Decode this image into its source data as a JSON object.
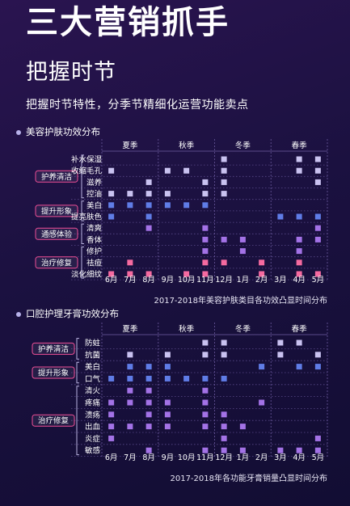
{
  "header": {
    "title": "三大营销抓手",
    "subtitle": "把握时节",
    "tagline": "把握时节特性，分季节精细化运营功能卖点"
  },
  "colors": {
    "lavender": "#c9c2f0",
    "blue": "#5f7ce6",
    "purple": "#a372e6",
    "pink": "#f56aa0",
    "category_label_bg": "#f04f96",
    "grid": "#5a4a8a"
  },
  "chart_data": [
    {
      "type": "table",
      "title": "美容护肤功效分布",
      "caption": "2017-2018年美容护肤类目各功效凸显时间分布",
      "seasons": [
        "夏季",
        "秋季",
        "冬季",
        "春季"
      ],
      "months": [
        "6月",
        "7月",
        "8月",
        "9月",
        "10月",
        "11月",
        "12月",
        "1月",
        "2月",
        "3月",
        "4月",
        "5月"
      ],
      "groups": [
        {
          "name": "护养清洁",
          "rows": [
            0,
            3
          ]
        },
        {
          "name": "提升形象",
          "rows": [
            4,
            5
          ]
        },
        {
          "name": "通感体验",
          "rows": [
            6,
            7
          ]
        },
        {
          "name": "治疗修复",
          "rows": [
            8,
            10
          ]
        }
      ],
      "rows": [
        {
          "name": "补水保湿",
          "color": "lavender",
          "months": [
            6,
            10,
            11
          ]
        },
        {
          "name": "收缩毛孔",
          "color": "lavender",
          "months": [
            0,
            3,
            4,
            6,
            10,
            11
          ]
        },
        {
          "name": "滋养",
          "color": "lavender",
          "months": [
            2,
            5,
            6,
            11
          ]
        },
        {
          "name": "控油",
          "color": "lavender",
          "months": [
            0,
            1,
            2,
            3,
            5,
            6
          ]
        },
        {
          "name": "美白",
          "color": "blue",
          "months": [
            0,
            1,
            2,
            3,
            4,
            5
          ]
        },
        {
          "name": "提亮肤色",
          "color": "blue",
          "months": [
            0,
            2,
            9,
            10,
            11
          ]
        },
        {
          "name": "清爽",
          "color": "purple",
          "months": [
            2,
            5,
            11
          ]
        },
        {
          "name": "香体",
          "color": "purple",
          "months": [
            5,
            6,
            7,
            10,
            11
          ]
        },
        {
          "name": "修护",
          "color": "purple",
          "months": [
            5,
            7,
            10
          ]
        },
        {
          "name": "祛痘",
          "color": "pink",
          "months": [
            1,
            5,
            6,
            8,
            10
          ]
        },
        {
          "name": "淡化细纹",
          "color": "pink",
          "months": [
            0,
            1,
            2,
            4,
            5,
            8,
            10,
            11
          ]
        }
      ]
    },
    {
      "type": "table",
      "title": "口腔护理牙膏功效分布",
      "caption": "2017-2018年各功能牙膏销量凸显时间分布",
      "seasons": [
        "夏季",
        "秋季",
        "冬季",
        "春季"
      ],
      "months": [
        "6月",
        "7月",
        "8月",
        "9月",
        "10月",
        "11月",
        "12月",
        "1月",
        "2月",
        "3月",
        "4月",
        "5月"
      ],
      "groups": [
        {
          "name": "护养清洁",
          "rows": [
            0,
            1
          ]
        },
        {
          "name": "提升形象",
          "rows": [
            2,
            3
          ]
        },
        {
          "name": "治疗修复",
          "rows": [
            4,
            9
          ]
        }
      ],
      "rows": [
        {
          "name": "防蛀",
          "color": "lavender",
          "months": [
            5,
            6,
            9,
            10
          ]
        },
        {
          "name": "抗菌",
          "color": "lavender",
          "months": [
            1,
            3,
            5,
            6,
            9,
            11
          ]
        },
        {
          "name": "美白",
          "color": "blue",
          "months": [
            1,
            2,
            3,
            8,
            10,
            11
          ]
        },
        {
          "name": "口气",
          "color": "blue",
          "months": [
            0,
            1,
            2,
            3,
            4,
            5,
            6
          ]
        },
        {
          "name": "清火",
          "color": "purple",
          "months": [
            1,
            2,
            5
          ]
        },
        {
          "name": "疼痛",
          "color": "purple",
          "months": [
            0,
            1,
            2,
            3,
            5,
            8
          ]
        },
        {
          "name": "溃疡",
          "color": "purple",
          "months": [
            0,
            2,
            3,
            5,
            6
          ]
        },
        {
          "name": "出血",
          "color": "purple",
          "months": [
            0,
            1,
            2,
            3,
            5,
            6,
            7
          ]
        },
        {
          "name": "炎症",
          "color": "purple",
          "months": [
            0,
            6,
            11
          ]
        },
        {
          "name": "敏感",
          "color": "purple",
          "months": [
            2,
            5,
            6,
            7,
            9,
            10,
            11
          ]
        }
      ]
    }
  ]
}
